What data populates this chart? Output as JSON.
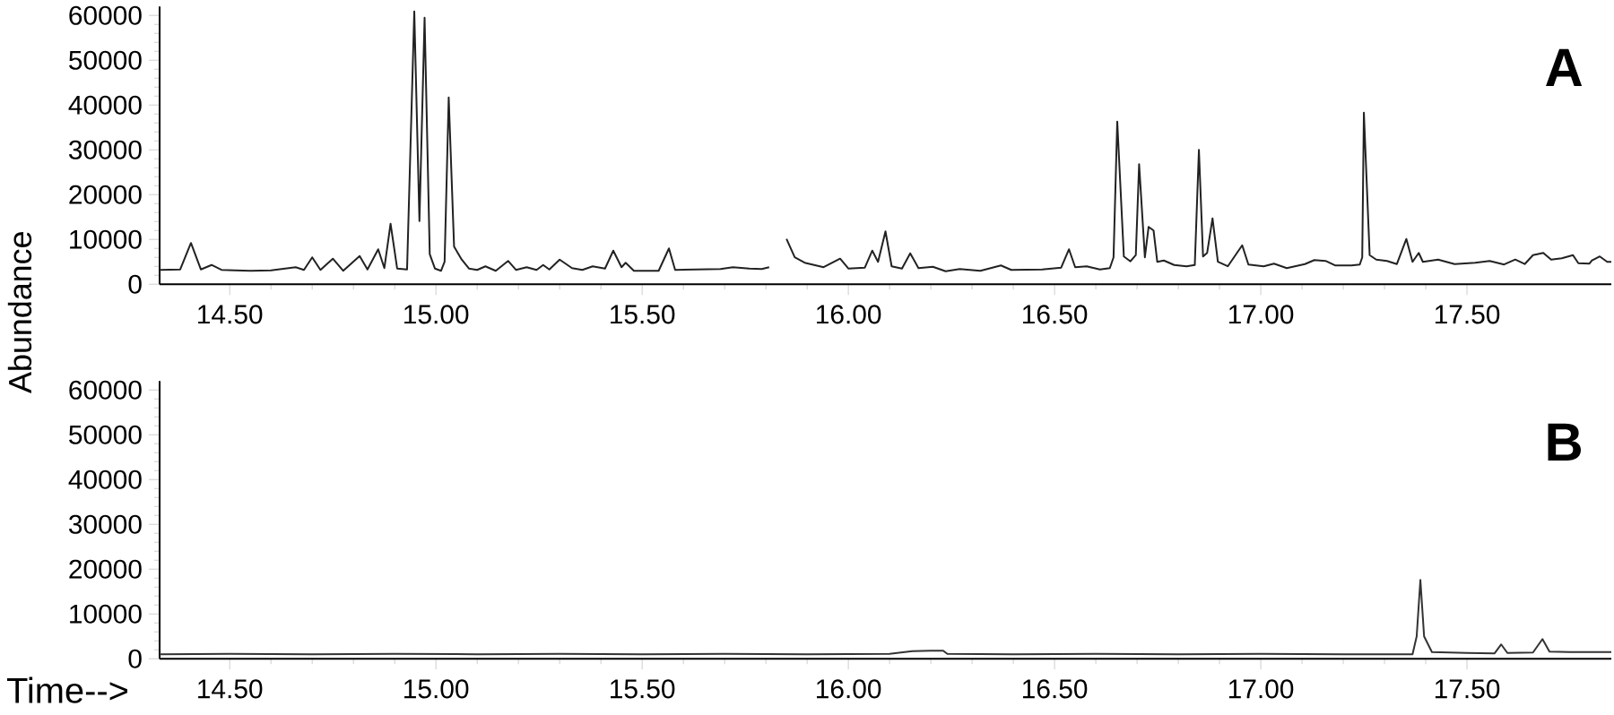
{
  "chart_data": [
    {
      "type": "line",
      "ylabel": "Abundance",
      "color": "#222222",
      "xlim": [
        14.33,
        17.85
      ],
      "ylim": [
        0,
        62000
      ],
      "xticks": [
        {
          "value": 14.5,
          "label": "14.50"
        },
        {
          "value": 15,
          "label": "15.00"
        },
        {
          "value": 15.5,
          "label": "15.50"
        },
        {
          "value": 16,
          "label": "16.00"
        },
        {
          "value": 16.5,
          "label": "16.50"
        },
        {
          "value": 17,
          "label": "17.00"
        },
        {
          "value": 17.5,
          "label": "17.50"
        }
      ],
      "yticks": [
        0,
        10000,
        20000,
        30000,
        40000,
        50000,
        60000
      ],
      "annotations": [
        "A"
      ],
      "x": [
        14.33,
        14.38,
        14.406,
        14.43,
        14.456,
        14.48,
        14.55,
        14.6,
        14.66,
        14.68,
        14.7,
        14.72,
        14.75,
        14.775,
        14.815,
        14.834,
        14.86,
        14.875,
        14.89,
        14.906,
        14.93,
        14.9475,
        14.96,
        14.9725,
        14.985,
        14.9975,
        15.0125,
        15.021,
        15.031,
        15.044,
        15.0625,
        15.08,
        15.1,
        15.12,
        15.145,
        15.175,
        15.194,
        15.22,
        15.244,
        15.26,
        15.275,
        15.3,
        15.33,
        15.355,
        15.38,
        15.41,
        15.43,
        15.45,
        15.46,
        15.48,
        15.54,
        15.565,
        15.58,
        15.63,
        15.69,
        15.72,
        15.76,
        15.79,
        15.808,
        15.82,
        15.84,
        15.85,
        15.87,
        15.894,
        15.94,
        15.98,
        16.0,
        16.04,
        16.058,
        16.072,
        16.09,
        16.105,
        16.13,
        16.15,
        16.17,
        16.205,
        16.236,
        16.27,
        16.32,
        16.37,
        16.395,
        16.47,
        16.516,
        16.535,
        16.55,
        16.578,
        16.61,
        16.634,
        16.643,
        16.652,
        16.668,
        16.684,
        16.697,
        16.705,
        16.719,
        16.728,
        16.74,
        16.749,
        16.765,
        16.79,
        16.82,
        16.84,
        16.85,
        16.86,
        16.87,
        16.883,
        16.896,
        16.92,
        16.955,
        16.97,
        17.007,
        17.032,
        17.063,
        17.107,
        17.13,
        17.157,
        17.18,
        17.22,
        17.24,
        17.246,
        17.25,
        17.264,
        17.28,
        17.306,
        17.33,
        17.353,
        17.368,
        17.383,
        17.393,
        17.43,
        17.47,
        17.52,
        17.555,
        17.59,
        17.617,
        17.64,
        17.66,
        17.685,
        17.704,
        17.73,
        17.757,
        17.77,
        17.797,
        17.803,
        17.822,
        17.84,
        17.85
      ],
      "values": [
        3200,
        3300,
        9200,
        3300,
        4300,
        3200,
        3000,
        3100,
        3800,
        3200,
        6000,
        3200,
        5700,
        3000,
        6300,
        3300,
        7800,
        3600,
        13500,
        3500,
        3300,
        60900,
        14100,
        59500,
        6700,
        3500,
        3000,
        5000,
        41700,
        8400,
        5500,
        3500,
        3200,
        4000,
        3000,
        5200,
        3200,
        3800,
        3200,
        4300,
        3300,
        5500,
        3600,
        3200,
        4000,
        3500,
        7500,
        3800,
        4800,
        3000,
        3000,
        8000,
        3200,
        3300,
        3400,
        3800,
        3500,
        3400,
        3800,
        null,
        null,
        10100,
        6000,
        4800,
        3800,
        5700,
        3500,
        3700,
        7500,
        5000,
        11800,
        4000,
        3500,
        6900,
        3600,
        3900,
        2900,
        3400,
        3000,
        4200,
        3200,
        3300,
        3700,
        7800,
        3800,
        4000,
        3300,
        3600,
        6000,
        36300,
        6200,
        5100,
        6500,
        26800,
        6000,
        12800,
        12000,
        5000,
        5300,
        4300,
        4000,
        4300,
        30000,
        6200,
        7000,
        14700,
        5000,
        4000,
        8700,
        4400,
        4000,
        4600,
        3600,
        4500,
        5400,
        5200,
        4200,
        4200,
        4400,
        6000,
        38300,
        6500,
        5500,
        5200,
        4500,
        10100,
        5000,
        7000,
        5000,
        5500,
        4500,
        4800,
        5200,
        4400,
        5500,
        4500,
        6500,
        7000,
        5500,
        5800,
        6500,
        4700,
        4600,
        5300,
        6200,
        5000,
        5000
      ]
    },
    {
      "type": "line",
      "xlabel": "Time-->",
      "color": "#333333",
      "xlim": [
        14.33,
        17.85
      ],
      "ylim": [
        0,
        62000
      ],
      "xticks": [
        {
          "value": 14.5,
          "label": "14.50"
        },
        {
          "value": 15,
          "label": "15.00"
        },
        {
          "value": 15.5,
          "label": "15.50"
        },
        {
          "value": 16,
          "label": "16.00"
        },
        {
          "value": 16.5,
          "label": "16.50"
        },
        {
          "value": 17,
          "label": "17.00"
        },
        {
          "value": 17.5,
          "label": "17.50"
        }
      ],
      "yticks": [
        0,
        10000,
        20000,
        30000,
        40000,
        50000,
        60000
      ],
      "annotations": [
        "B"
      ],
      "x": [
        14.33,
        14.5,
        14.7,
        14.9,
        15.1,
        15.3,
        15.5,
        15.7,
        15.9,
        16.1,
        16.155,
        16.2,
        16.23,
        16.24,
        16.4,
        16.6,
        16.8,
        17.0,
        17.2,
        17.368,
        17.378,
        17.387,
        17.396,
        17.415,
        17.5,
        17.567,
        17.583,
        17.598,
        17.66,
        17.683,
        17.7,
        17.75,
        17.85
      ],
      "values": [
        1000,
        1100,
        1000,
        1100,
        1000,
        1100,
        1000,
        1100,
        1000,
        1100,
        1700,
        1800,
        1800,
        1100,
        1000,
        1100,
        1000,
        1100,
        1000,
        1000,
        5000,
        17600,
        5000,
        1500,
        1300,
        1200,
        3200,
        1300,
        1400,
        4400,
        1600,
        1500,
        1500
      ]
    }
  ]
}
